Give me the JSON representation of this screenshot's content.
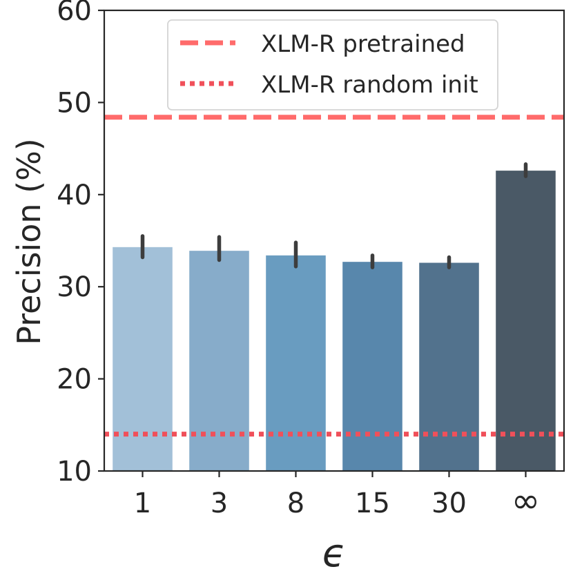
{
  "chart_data": {
    "type": "bar",
    "title": "",
    "xlabel": "ϵ",
    "ylabel": "Precision (%)",
    "ylim": [
      10,
      60
    ],
    "yticks": [
      "10",
      "20",
      "30",
      "40",
      "50",
      "60"
    ],
    "categories": [
      "1",
      "3",
      "8",
      "15",
      "30",
      "∞"
    ],
    "values": [
      34.3,
      33.9,
      33.4,
      32.7,
      32.6,
      42.6
    ],
    "error_low": [
      33.2,
      32.9,
      32.2,
      32.1,
      32.1,
      42.0
    ],
    "error_high": [
      35.5,
      35.4,
      34.8,
      33.4,
      33.2,
      43.3
    ],
    "bar_colors": [
      "#a2c0d8",
      "#87acca",
      "#699cc0",
      "#5887ac",
      "#52728d",
      "#4a5966"
    ],
    "error_color": "#3d3d3d",
    "reference_lines": [
      {
        "name": "XLM-R pretrained",
        "value": 48.4,
        "style": "dashed",
        "color": "#ff6b6b"
      },
      {
        "name": "XLM-R random init",
        "value": 14.0,
        "style": "dotted",
        "color": "#f0505a"
      }
    ],
    "legend": {
      "placement": "top-center",
      "entries": [
        "XLM-R pretrained",
        "XLM-R random init"
      ]
    },
    "grid": false
  }
}
